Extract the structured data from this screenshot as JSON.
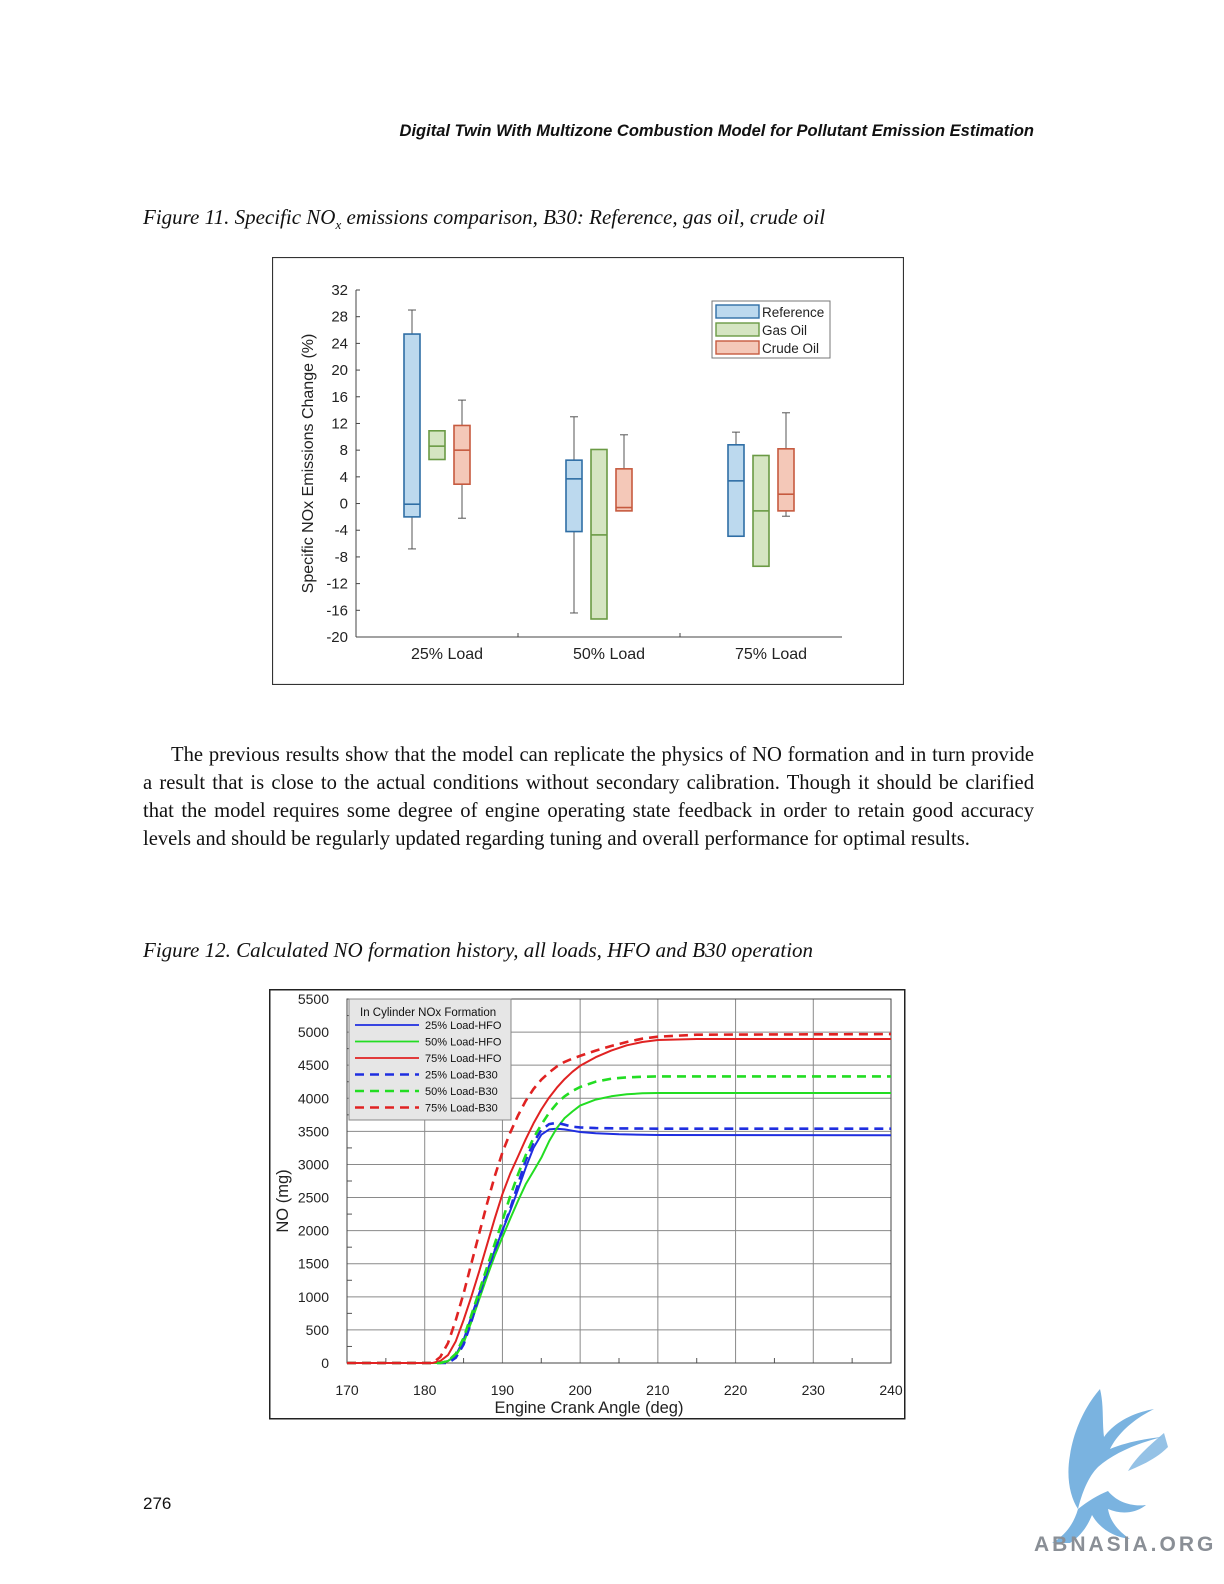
{
  "header": {
    "running_title": "Digital Twin With Multizone Combustion Model for Pollutant Emission Estimation"
  },
  "figure11": {
    "caption_pre": "Figure 11. Specific NO",
    "caption_sub": "x",
    "caption_post": " emissions comparison, B30: Reference, gas oil, crude oil",
    "chart_data": {
      "type": "box",
      "categories": [
        "25% Load",
        "50% Load",
        "75% Load"
      ],
      "ylabel": "Specific NOx Emissions Change (%)",
      "ylim": [
        -20,
        32
      ],
      "yticks": [
        "32",
        "28",
        "24",
        "20",
        "16",
        "12",
        "8",
        "4",
        "0",
        "-4",
        "-8",
        "-12",
        "-16",
        "-20"
      ],
      "legend_position": "top-right",
      "series": [
        {
          "name": "Reference",
          "fill": "#bcd9ee",
          "edge": "#2f6ea5",
          "boxes": [
            {
              "min": -6.8,
              "q1": -2.0,
              "median": -0.1,
              "q3": 25.4,
              "max": 29.0
            },
            {
              "min": -16.4,
              "q1": -4.2,
              "median": 3.7,
              "q3": 6.5,
              "max": 13.0
            },
            {
              "min": -4.9,
              "q1": -4.9,
              "median": 3.4,
              "q3": 8.8,
              "max": 10.7
            }
          ]
        },
        {
          "name": "Gas Oil",
          "fill": "#d5e5c2",
          "edge": "#6a9a44",
          "boxes": [
            {
              "min": 6.6,
              "q1": 6.6,
              "median": 8.6,
              "q3": 10.9,
              "max": 10.9
            },
            {
              "min": -17.3,
              "q1": -17.3,
              "median": -4.7,
              "q3": 8.1,
              "max": 8.1
            },
            {
              "min": -9.4,
              "q1": -9.4,
              "median": -1.1,
              "q3": 7.2,
              "max": 7.2
            }
          ]
        },
        {
          "name": "Crude Oil",
          "fill": "#f4c8b8",
          "edge": "#c65a3f",
          "boxes": [
            {
              "min": -2.2,
              "q1": 2.9,
              "median": 8.0,
              "q3": 11.7,
              "max": 15.5
            },
            {
              "min": -1.1,
              "q1": -1.1,
              "median": -0.6,
              "q3": 5.2,
              "max": 10.3
            },
            {
              "min": -1.9,
              "q1": -1.1,
              "median": 1.4,
              "q3": 8.2,
              "max": 13.6
            }
          ]
        }
      ]
    }
  },
  "paragraph": "The previous results show that the model can replicate the physics of NO formation and in turn provide a result that is close to the actual conditions without secondary calibration. Though it should be clarified that the model requires some degree of engine operating state feedback in order to retain good accuracy levels and should be regularly updated regarding tuning and overall performance for optimal results.",
  "figure12": {
    "caption": "Figure 12. Calculated NO formation history, all loads, HFO and B30 operation",
    "chart_data": {
      "type": "line",
      "xlabel": "Engine Crank Angle (deg)",
      "ylabel": "NO (mg)",
      "xlim": [
        170,
        240
      ],
      "ylim": [
        0,
        5500
      ],
      "xticks": [
        "170",
        "180",
        "190",
        "200",
        "210",
        "220",
        "230",
        "240"
      ],
      "yticks": [
        "0",
        "500",
        "1000",
        "1500",
        "2000",
        "2500",
        "3000",
        "3500",
        "4000",
        "4500",
        "5000",
        "5500"
      ],
      "grid": true,
      "legend_title": "In Cylinder NOx Formation",
      "legend_position": "top-left",
      "series": [
        {
          "name": "25% Load-HFO",
          "color": "#1f2ee0",
          "dashed": false,
          "x": [
            170,
            182,
            183,
            184,
            185,
            186,
            187,
            188,
            189,
            190,
            191,
            192,
            193,
            194,
            195,
            196,
            197,
            198,
            199,
            200,
            202,
            205,
            210,
            240
          ],
          "y": [
            0,
            0,
            30,
            120,
            350,
            700,
            1050,
            1380,
            1700,
            2000,
            2300,
            2620,
            2950,
            3250,
            3450,
            3530,
            3540,
            3530,
            3510,
            3490,
            3470,
            3455,
            3445,
            3440
          ]
        },
        {
          "name": "50% Load-HFO",
          "color": "#22dd22",
          "dashed": false,
          "x": [
            170,
            182,
            183,
            184,
            185,
            186,
            187,
            188,
            189,
            190,
            191,
            192,
            193,
            194,
            195,
            196,
            197,
            198,
            199,
            200,
            202,
            204,
            206,
            208,
            210,
            240
          ],
          "y": [
            0,
            0,
            30,
            110,
            300,
            620,
            960,
            1300,
            1620,
            1900,
            2180,
            2450,
            2700,
            2900,
            3100,
            3350,
            3550,
            3700,
            3800,
            3890,
            3980,
            4030,
            4060,
            4075,
            4080,
            4080
          ]
        },
        {
          "name": "75% Load-HFO",
          "color": "#e02222",
          "dashed": false,
          "x": [
            170,
            181,
            182,
            183,
            184,
            185,
            186,
            187,
            188,
            189,
            190,
            191,
            192,
            193,
            194,
            195,
            196,
            197,
            198,
            199,
            200,
            202,
            204,
            206,
            208,
            210,
            215,
            240
          ],
          "y": [
            0,
            0,
            30,
            120,
            330,
            650,
            1000,
            1380,
            1780,
            2180,
            2550,
            2860,
            3120,
            3380,
            3620,
            3830,
            4010,
            4160,
            4290,
            4400,
            4490,
            4620,
            4720,
            4800,
            4850,
            4880,
            4895,
            4895
          ]
        },
        {
          "name": "25% Load-B30",
          "color": "#1f2ee0",
          "dashed": true,
          "x": [
            170,
            183,
            184,
            185,
            186,
            187,
            188,
            189,
            190,
            191,
            192,
            193,
            194,
            195,
            196,
            197,
            198,
            199,
            200,
            202,
            205,
            210,
            240
          ],
          "y": [
            0,
            0,
            80,
            280,
            620,
            1020,
            1380,
            1700,
            2000,
            2330,
            2700,
            3060,
            3330,
            3520,
            3610,
            3630,
            3600,
            3570,
            3560,
            3550,
            3545,
            3540,
            3540
          ]
        },
        {
          "name": "50% Load-B30",
          "color": "#22dd22",
          "dashed": true,
          "x": [
            170,
            182,
            183,
            184,
            185,
            186,
            187,
            188,
            189,
            190,
            191,
            192,
            193,
            194,
            195,
            196,
            197,
            198,
            199,
            200,
            202,
            204,
            206,
            208,
            210,
            240
          ],
          "y": [
            0,
            0,
            30,
            140,
            380,
            720,
            1080,
            1440,
            1800,
            2150,
            2520,
            2850,
            3140,
            3400,
            3600,
            3780,
            3920,
            4030,
            4110,
            4170,
            4250,
            4295,
            4315,
            4325,
            4330,
            4330
          ]
        },
        {
          "name": "75% Load-B30",
          "color": "#e02222",
          "dashed": true,
          "x": [
            170,
            181,
            182,
            183,
            184,
            185,
            186,
            187,
            188,
            189,
            190,
            191,
            192,
            193,
            194,
            195,
            196,
            197,
            198,
            199,
            200,
            202,
            204,
            206,
            208,
            210,
            215,
            240
          ],
          "y": [
            0,
            0,
            90,
            300,
            650,
            1050,
            1500,
            1950,
            2400,
            2820,
            3180,
            3480,
            3740,
            3960,
            4140,
            4280,
            4390,
            4480,
            4550,
            4600,
            4640,
            4720,
            4790,
            4850,
            4900,
            4930,
            4960,
            4970
          ]
        }
      ]
    }
  },
  "footer": {
    "page_number": "276",
    "watermark": "ABNASIA.ORG"
  }
}
